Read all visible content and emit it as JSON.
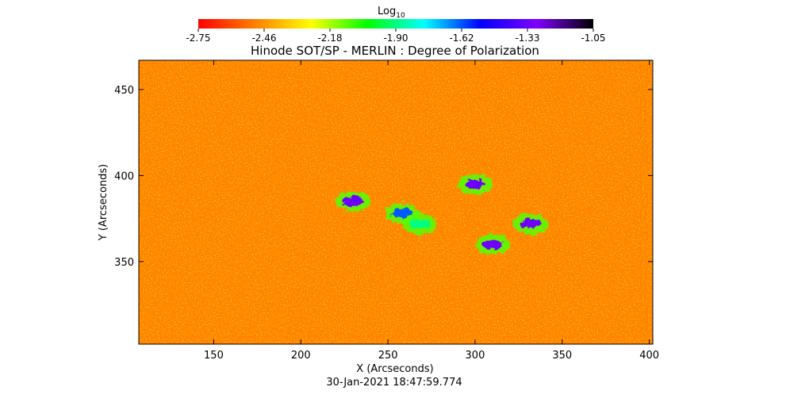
{
  "colorbar": {
    "label": "Log",
    "label_sub": "10",
    "tick_labels": [
      "-2.75",
      "-2.46",
      "-2.18",
      "-1.90",
      "-1.62",
      "-1.33",
      "-1.05"
    ],
    "range": [
      -2.75,
      -1.05
    ],
    "colormap": [
      "#ff0000",
      "#ff7f00",
      "#ffff00",
      "#00ff00",
      "#00ffff",
      "#0000ff",
      "#7f00ff",
      "#000000"
    ]
  },
  "chart_data": {
    "type": "heatmap",
    "title": "Hinode SOT/SP - MERLIN : Degree of Polarization",
    "xlabel": "X (Arcseconds)",
    "ylabel": "Y (Arcseconds)",
    "xlim": [
      107,
      402
    ],
    "ylim": [
      302,
      467
    ],
    "x_ticks": [
      150,
      200,
      250,
      300,
      350,
      400
    ],
    "y_ticks": [
      350,
      400,
      450
    ],
    "value_label": "Log10 Degree of Polarization",
    "value_range": [
      -2.75,
      -1.05
    ],
    "features": [
      {
        "x": 230,
        "y": 385,
        "value": -1.33
      },
      {
        "x": 258,
        "y": 378,
        "value": -1.62
      },
      {
        "x": 300,
        "y": 395,
        "value": -1.33
      },
      {
        "x": 310,
        "y": 360,
        "value": -1.33
      },
      {
        "x": 332,
        "y": 372,
        "value": -1.33
      },
      {
        "x": 268,
        "y": 372,
        "value": -1.9
      }
    ]
  },
  "footer": {
    "timestamp": "30-Jan-2021 18:47:59.774"
  }
}
